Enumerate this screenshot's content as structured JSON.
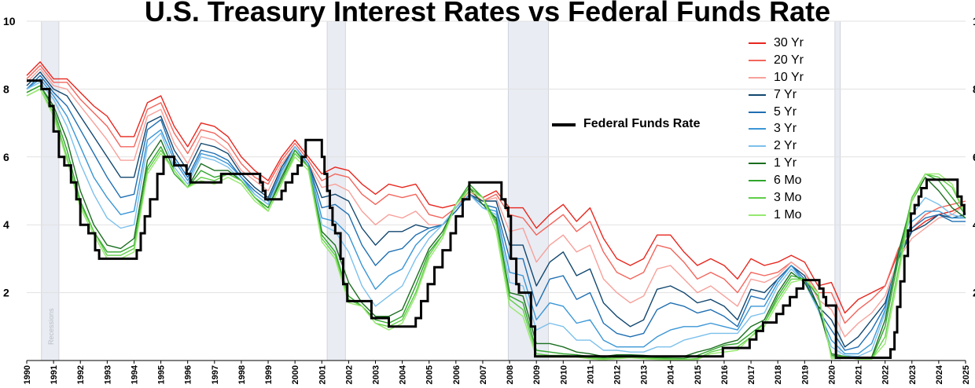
{
  "chart_data": {
    "type": "line",
    "title": "U.S. Treasury Interest Rates vs Federal Funds Rate",
    "xlim": [
      1990,
      2025
    ],
    "ylim": [
      0,
      10
    ],
    "yticks": [
      2,
      4,
      6,
      8,
      10
    ],
    "xticks": [
      "1990",
      "1991",
      "1992",
      "1993",
      "1994",
      "1995",
      "1996",
      "1997",
      "1998",
      "1999",
      "2000",
      "2001",
      "2002",
      "2003",
      "2004",
      "2005",
      "2006",
      "2007",
      "2008",
      "2009",
      "2010",
      "2011",
      "2012",
      "2013",
      "2014",
      "2015",
      "2016",
      "2017",
      "2018",
      "2019",
      "2020",
      "2021",
      "2022",
      "2023",
      "2024",
      "2025"
    ],
    "recessions_label": "Recessions",
    "recessions": [
      [
        1990.55,
        1991.2
      ],
      [
        2001.2,
        2001.88
      ],
      [
        2007.95,
        2009.45
      ],
      [
        2020.13,
        2020.33
      ]
    ],
    "x": [
      1990,
      1990.5,
      1991,
      1991.5,
      1992,
      1992.5,
      1993,
      1993.5,
      1994,
      1994.5,
      1995,
      1995.5,
      1996,
      1996.5,
      1997,
      1997.5,
      1998,
      1998.5,
      1999,
      1999.5,
      2000,
      2000.5,
      2001,
      2001.5,
      2002,
      2002.5,
      2003,
      2003.5,
      2004,
      2004.5,
      2005,
      2005.5,
      2006,
      2006.5,
      2007,
      2007.5,
      2008,
      2008.5,
      2009,
      2009.5,
      2010,
      2010.5,
      2011,
      2011.5,
      2012,
      2012.5,
      2013,
      2013.5,
      2014,
      2014.5,
      2015,
      2015.5,
      2016,
      2016.5,
      2017,
      2017.5,
      2018,
      2018.5,
      2019,
      2019.5,
      2020,
      2020.5,
      2021,
      2021.5,
      2022,
      2022.5,
      2023,
      2023.5,
      2024,
      2024.5,
      2025
    ],
    "series": [
      {
        "name": "30 Yr",
        "color": "#e8261e",
        "values": [
          8.4,
          8.8,
          8.3,
          8.3,
          7.9,
          7.5,
          7.2,
          6.6,
          6.6,
          7.6,
          7.8,
          6.9,
          6.3,
          7.0,
          6.9,
          6.6,
          6.0,
          5.6,
          5.3,
          6.0,
          6.5,
          6.0,
          5.5,
          5.7,
          5.6,
          5.2,
          4.9,
          5.2,
          5.1,
          5.2,
          4.6,
          4.5,
          4.6,
          5.1,
          4.8,
          5.0,
          4.5,
          4.5,
          3.9,
          4.3,
          4.6,
          4.1,
          4.5,
          3.6,
          3.0,
          2.8,
          3.0,
          3.7,
          3.7,
          3.2,
          2.8,
          3.0,
          2.8,
          2.4,
          3.0,
          2.8,
          2.9,
          3.1,
          2.9,
          2.2,
          2.3,
          1.4,
          1.8,
          2.0,
          2.2,
          3.2,
          3.8,
          4.1,
          4.3,
          4.4,
          4.6
        ]
      },
      {
        "name": "20 Yr",
        "color": "#f2655c",
        "values": [
          8.3,
          8.7,
          8.2,
          8.2,
          7.7,
          7.3,
          6.9,
          6.3,
          6.3,
          7.4,
          7.6,
          6.7,
          6.1,
          6.8,
          6.7,
          6.4,
          5.8,
          5.4,
          5.2,
          5.9,
          6.4,
          5.9,
          5.3,
          5.5,
          5.4,
          4.9,
          4.6,
          4.9,
          4.8,
          4.9,
          4.3,
          4.2,
          4.5,
          5.0,
          4.7,
          4.9,
          4.3,
          4.2,
          3.7,
          4.0,
          4.3,
          3.8,
          4.1,
          3.2,
          2.6,
          2.4,
          2.6,
          3.4,
          3.3,
          2.9,
          2.4,
          2.6,
          2.4,
          2.0,
          2.6,
          2.5,
          2.6,
          2.9,
          2.6,
          2.0,
          2.0,
          1.1,
          1.5,
          1.8,
          2.2,
          3.3,
          3.9,
          4.3,
          4.5,
          4.6,
          4.7
        ]
      },
      {
        "name": "10 Yr",
        "color": "#f7a09a",
        "values": [
          8.2,
          8.6,
          8.1,
          8.0,
          7.5,
          7.0,
          6.5,
          5.9,
          5.9,
          7.2,
          7.4,
          6.4,
          5.8,
          6.6,
          6.5,
          6.2,
          5.6,
          5.3,
          5.0,
          5.8,
          6.3,
          5.8,
          5.1,
          5.2,
          5.0,
          4.4,
          4.0,
          4.3,
          4.2,
          4.4,
          4.0,
          4.0,
          4.4,
          4.9,
          4.7,
          4.8,
          3.8,
          3.9,
          2.9,
          3.4,
          3.7,
          3.2,
          3.4,
          2.4,
          2.0,
          1.7,
          1.9,
          2.7,
          2.8,
          2.4,
          2.0,
          2.2,
          1.9,
          1.6,
          2.4,
          2.3,
          2.5,
          2.9,
          2.6,
          1.8,
          1.5,
          0.7,
          1.1,
          1.4,
          1.9,
          3.0,
          3.6,
          3.9,
          4.2,
          4.3,
          4.6
        ]
      },
      {
        "name": "7 Yr",
        "color": "#12476f",
        "values": [
          8.1,
          8.5,
          8.0,
          7.8,
          7.2,
          6.6,
          6.0,
          5.4,
          5.4,
          7.0,
          7.2,
          6.2,
          5.6,
          6.4,
          6.3,
          6.1,
          5.5,
          5.1,
          4.8,
          5.7,
          6.3,
          5.8,
          4.8,
          4.9,
          4.7,
          3.9,
          3.4,
          3.8,
          3.8,
          4.0,
          3.9,
          4.0,
          4.4,
          4.9,
          4.7,
          4.7,
          3.4,
          3.4,
          2.2,
          2.9,
          3.2,
          2.5,
          2.7,
          1.7,
          1.3,
          1.0,
          1.2,
          2.1,
          2.2,
          2.0,
          1.7,
          1.8,
          1.6,
          1.2,
          2.1,
          2.0,
          2.4,
          2.8,
          2.5,
          1.6,
          1.2,
          0.4,
          0.7,
          1.2,
          1.7,
          3.0,
          3.8,
          4.0,
          4.3,
          4.2,
          4.3
        ]
      },
      {
        "name": "5 Yr",
        "color": "#1f6fb2",
        "values": [
          8.0,
          8.4,
          7.9,
          7.5,
          6.8,
          6.1,
          5.4,
          4.8,
          4.9,
          6.8,
          7.1,
          6.0,
          5.4,
          6.2,
          6.1,
          5.9,
          5.4,
          5.0,
          4.7,
          5.6,
          6.3,
          5.8,
          4.5,
          4.6,
          4.3,
          3.4,
          2.8,
          3.2,
          3.3,
          3.7,
          3.9,
          4.0,
          4.4,
          4.9,
          4.6,
          4.5,
          3.0,
          3.0,
          1.6,
          2.4,
          2.5,
          1.8,
          2.0,
          1.1,
          0.8,
          0.7,
          0.8,
          1.5,
          1.7,
          1.6,
          1.4,
          1.5,
          1.3,
          1.0,
          1.9,
          1.8,
          2.4,
          2.8,
          2.4,
          1.5,
          0.9,
          0.3,
          0.4,
          0.9,
          1.6,
          3.0,
          3.9,
          4.2,
          4.3,
          4.1,
          4.1
        ]
      },
      {
        "name": "3 Yr",
        "color": "#3a96d6",
        "values": [
          8.0,
          8.3,
          7.8,
          7.2,
          6.3,
          5.4,
          4.8,
          4.3,
          4.4,
          6.5,
          6.8,
          5.9,
          5.3,
          6.1,
          6.0,
          5.8,
          5.4,
          4.9,
          4.6,
          5.6,
          6.3,
          5.8,
          4.2,
          4.1,
          3.7,
          2.8,
          2.1,
          2.5,
          2.7,
          3.4,
          3.8,
          4.0,
          4.5,
          4.9,
          4.5,
          4.4,
          2.6,
          2.5,
          1.2,
          1.7,
          1.6,
          1.1,
          1.2,
          0.6,
          0.4,
          0.4,
          0.4,
          0.7,
          0.9,
          1.0,
          1.0,
          1.1,
          1.0,
          0.9,
          1.6,
          1.6,
          2.3,
          2.8,
          2.3,
          1.5,
          0.6,
          0.2,
          0.2,
          0.5,
          1.5,
          3.1,
          4.1,
          4.4,
          4.4,
          4.2,
          4.2
        ]
      },
      {
        "name": "2 Yr",
        "color": "#7cc0ec",
        "values": [
          8.0,
          8.2,
          7.7,
          6.9,
          5.8,
          4.9,
          4.2,
          3.9,
          4.0,
          6.3,
          6.7,
          5.7,
          5.2,
          6.0,
          5.9,
          5.7,
          5.3,
          4.9,
          4.6,
          5.5,
          6.3,
          5.7,
          4.0,
          3.8,
          3.2,
          2.2,
          1.6,
          1.9,
          2.2,
          3.0,
          3.6,
          4.0,
          4.5,
          4.9,
          4.5,
          4.3,
          2.3,
          2.2,
          0.9,
          1.1,
          1.0,
          0.6,
          0.6,
          0.3,
          0.3,
          0.25,
          0.25,
          0.4,
          0.4,
          0.6,
          0.7,
          0.8,
          0.8,
          0.8,
          1.3,
          1.4,
          2.2,
          2.7,
          2.3,
          1.5,
          0.4,
          0.15,
          0.12,
          0.3,
          1.4,
          3.2,
          4.3,
          4.8,
          4.6,
          4.3,
          4.2
        ]
      },
      {
        "name": "1 Yr",
        "color": "#1b6e1f",
        "values": [
          7.9,
          8.1,
          7.5,
          6.5,
          5.0,
          4.0,
          3.4,
          3.3,
          3.6,
          5.9,
          6.5,
          5.6,
          5.1,
          5.8,
          5.6,
          5.6,
          5.3,
          4.8,
          4.5,
          5.4,
          6.2,
          5.7,
          3.8,
          3.4,
          2.3,
          1.7,
          1.3,
          1.3,
          1.5,
          2.4,
          3.3,
          3.8,
          4.6,
          5.1,
          4.6,
          4.2,
          2.0,
          1.9,
          0.5,
          0.5,
          0.4,
          0.25,
          0.2,
          0.12,
          0.17,
          0.17,
          0.15,
          0.12,
          0.12,
          0.12,
          0.25,
          0.35,
          0.5,
          0.6,
          1.0,
          1.2,
          2.0,
          2.6,
          2.3,
          1.6,
          0.2,
          0.12,
          0.08,
          0.1,
          1.2,
          3.2,
          4.7,
          5.4,
          5.0,
          4.5,
          4.2
        ]
      },
      {
        "name": "6 Mo",
        "color": "#2fa52b",
        "values": [
          7.9,
          8.1,
          7.4,
          6.2,
          4.7,
          3.8,
          3.2,
          3.2,
          3.4,
          5.7,
          6.3,
          5.5,
          5.1,
          5.6,
          5.4,
          5.5,
          5.3,
          4.8,
          4.5,
          5.3,
          6.2,
          5.7,
          3.7,
          3.2,
          1.9,
          1.6,
          1.2,
          1.1,
          1.3,
          2.2,
          3.2,
          3.7,
          4.6,
          5.2,
          4.8,
          4.1,
          1.9,
          1.7,
          0.3,
          0.25,
          0.2,
          0.17,
          0.12,
          0.08,
          0.12,
          0.12,
          0.1,
          0.08,
          0.07,
          0.06,
          0.15,
          0.3,
          0.45,
          0.5,
          0.8,
          1.1,
          1.9,
          2.5,
          2.4,
          1.9,
          0.15,
          0.12,
          0.05,
          0.05,
          1.0,
          3.0,
          4.8,
          5.5,
          5.3,
          4.8,
          4.3
        ]
      },
      {
        "name": "3 Mo",
        "color": "#5fce47",
        "values": [
          7.8,
          8.0,
          7.3,
          6.0,
          4.6,
          3.8,
          3.1,
          3.1,
          3.3,
          5.6,
          6.2,
          5.6,
          5.1,
          5.4,
          5.3,
          5.5,
          5.3,
          4.8,
          4.4,
          5.2,
          6.1,
          5.7,
          3.6,
          3.1,
          1.8,
          1.6,
          1.1,
          1.0,
          1.2,
          2.0,
          3.1,
          3.7,
          4.6,
          5.1,
          4.8,
          4.0,
          1.8,
          1.5,
          0.2,
          0.15,
          0.15,
          0.12,
          0.08,
          0.05,
          0.08,
          0.09,
          0.08,
          0.05,
          0.04,
          0.03,
          0.06,
          0.25,
          0.35,
          0.4,
          0.7,
          1.1,
          1.8,
          2.4,
          2.4,
          2.0,
          0.1,
          0.12,
          0.05,
          0.04,
          0.7,
          2.7,
          4.8,
          5.5,
          5.4,
          5.1,
          4.3
        ]
      },
      {
        "name": "1 Mo",
        "color": "#96e86f",
        "values": [
          7.8,
          8.0,
          7.2,
          5.9,
          4.5,
          3.7,
          3.0,
          3.0,
          3.2,
          5.5,
          6.1,
          5.6,
          5.1,
          5.3,
          5.2,
          5.4,
          5.2,
          4.7,
          4.4,
          5.2,
          6.0,
          5.6,
          3.5,
          3.0,
          1.7,
          1.6,
          1.1,
          0.9,
          1.1,
          1.9,
          3.0,
          3.6,
          4.6,
          5.0,
          4.8,
          3.8,
          1.6,
          1.3,
          0.1,
          0.1,
          0.1,
          0.1,
          0.05,
          0.02,
          0.05,
          0.08,
          0.05,
          0.03,
          0.02,
          0.02,
          0.03,
          0.2,
          0.25,
          0.3,
          0.7,
          1.0,
          1.7,
          2.3,
          2.4,
          2.0,
          0.05,
          0.1,
          0.04,
          0.04,
          0.5,
          2.5,
          4.7,
          5.5,
          5.5,
          5.2,
          4.3
        ]
      }
    ],
    "fed_funds": {
      "name": "Federal Funds Rate",
      "color": "#000000",
      "steps": [
        [
          1990,
          8.25
        ],
        [
          1990.55,
          8.0
        ],
        [
          1990.85,
          7.5
        ],
        [
          1991.0,
          6.75
        ],
        [
          1991.2,
          6.0
        ],
        [
          1991.4,
          5.75
        ],
        [
          1991.65,
          5.25
        ],
        [
          1991.85,
          4.75
        ],
        [
          1992.0,
          4.0
        ],
        [
          1992.3,
          3.75
        ],
        [
          1992.55,
          3.25
        ],
        [
          1992.7,
          3.0
        ],
        [
          1994.1,
          3.25
        ],
        [
          1994.25,
          3.75
        ],
        [
          1994.4,
          4.25
        ],
        [
          1994.6,
          4.75
        ],
        [
          1994.87,
          5.5
        ],
        [
          1995.1,
          6.0
        ],
        [
          1995.5,
          5.75
        ],
        [
          1995.96,
          5.5
        ],
        [
          1996.1,
          5.25
        ],
        [
          1997.25,
          5.5
        ],
        [
          1998.7,
          5.25
        ],
        [
          1998.8,
          5.0
        ],
        [
          1998.9,
          4.75
        ],
        [
          1999.5,
          5.0
        ],
        [
          1999.65,
          5.25
        ],
        [
          1999.9,
          5.5
        ],
        [
          2000.1,
          5.75
        ],
        [
          2000.25,
          6.0
        ],
        [
          2000.4,
          6.5
        ],
        [
          2001.0,
          6.0
        ],
        [
          2001.1,
          5.5
        ],
        [
          2001.2,
          5.0
        ],
        [
          2001.3,
          4.5
        ],
        [
          2001.4,
          4.0
        ],
        [
          2001.5,
          3.75
        ],
        [
          2001.7,
          3.0
        ],
        [
          2001.8,
          2.25
        ],
        [
          2001.95,
          1.75
        ],
        [
          2002.85,
          1.25
        ],
        [
          2003.5,
          1.0
        ],
        [
          2004.5,
          1.25
        ],
        [
          2004.7,
          1.75
        ],
        [
          2004.95,
          2.25
        ],
        [
          2005.2,
          2.75
        ],
        [
          2005.5,
          3.25
        ],
        [
          2005.8,
          3.75
        ],
        [
          2006.0,
          4.25
        ],
        [
          2006.25,
          4.75
        ],
        [
          2006.5,
          5.25
        ],
        [
          2007.7,
          4.75
        ],
        [
          2007.85,
          4.5
        ],
        [
          2007.95,
          4.25
        ],
        [
          2008.05,
          3.0
        ],
        [
          2008.25,
          2.25
        ],
        [
          2008.35,
          2.0
        ],
        [
          2008.8,
          1.0
        ],
        [
          2008.95,
          0.12
        ],
        [
          2015.95,
          0.37
        ],
        [
          2016.95,
          0.62
        ],
        [
          2017.2,
          0.87
        ],
        [
          2017.45,
          1.12
        ],
        [
          2017.95,
          1.37
        ],
        [
          2018.2,
          1.62
        ],
        [
          2018.45,
          1.87
        ],
        [
          2018.7,
          2.12
        ],
        [
          2018.95,
          2.37
        ],
        [
          2019.55,
          2.12
        ],
        [
          2019.7,
          1.87
        ],
        [
          2019.8,
          1.62
        ],
        [
          2020.17,
          0.08
        ],
        [
          2022.2,
          0.33
        ],
        [
          2022.35,
          0.83
        ],
        [
          2022.45,
          1.58
        ],
        [
          2022.57,
          2.33
        ],
        [
          2022.72,
          3.08
        ],
        [
          2022.85,
          3.83
        ],
        [
          2022.96,
          4.33
        ],
        [
          2023.1,
          4.58
        ],
        [
          2023.25,
          4.83
        ],
        [
          2023.35,
          5.08
        ],
        [
          2023.55,
          5.33
        ],
        [
          2024.7,
          4.83
        ],
        [
          2024.85,
          4.58
        ],
        [
          2024.95,
          4.33
        ],
        [
          2025,
          4.33
        ]
      ]
    }
  }
}
